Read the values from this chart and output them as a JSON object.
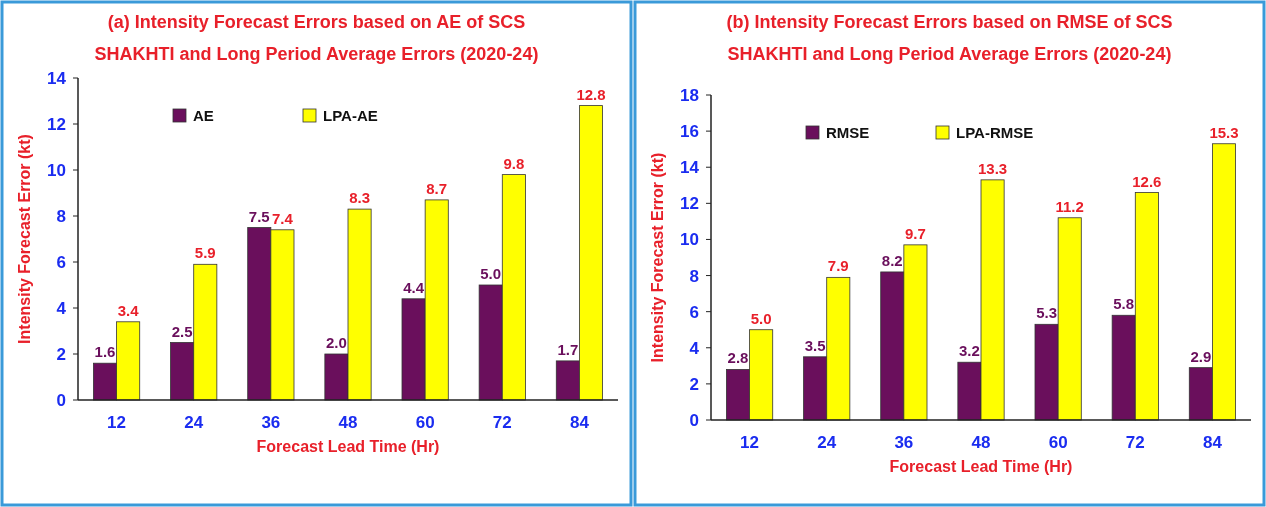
{
  "chart_data": [
    {
      "type": "bar",
      "title": "(a) Intensity Forecast Errors based on AE of SCS SHAKHTI and Long Period Average Errors (2020-24)",
      "xlabel": "Forecast Lead Time (Hr)",
      "ylabel": "Intensity Forecast Error  (kt)",
      "categories": [
        "12",
        "24",
        "36",
        "48",
        "60",
        "72",
        "84"
      ],
      "series": [
        {
          "name": "AE",
          "color": "#6a0f5c",
          "values": [
            1.6,
            2.5,
            7.5,
            2.0,
            4.4,
            5.0,
            1.7
          ],
          "value_labels": [
            "1.6",
            "2.5",
            "7.5",
            "2.0",
            "4.4",
            "5.0",
            "1.7"
          ]
        },
        {
          "name": "LPA-AE",
          "color": "#ffff00",
          "values": [
            3.4,
            5.9,
            7.4,
            8.3,
            8.7,
            9.8,
            12.8
          ],
          "value_labels": [
            "3.4",
            "5.9",
            "7.4",
            "8.3",
            "8.7",
            "9.8",
            "12.8"
          ]
        }
      ],
      "ylim": [
        0,
        14
      ],
      "yticks": [
        0,
        2,
        4,
        6,
        8,
        10,
        12,
        14
      ],
      "legend": "top",
      "grid": false
    },
    {
      "type": "bar",
      "title": "(b) Intensity Forecast Errors based on RMSE of SCS SHAKHTI and Long Period Average Errors (2020-24)",
      "xlabel": "Forecast Lead Time (Hr)",
      "ylabel": "Intensity Forecast Error  (kt)",
      "categories": [
        "12",
        "24",
        "36",
        "48",
        "60",
        "72",
        "84"
      ],
      "series": [
        {
          "name": "RMSE",
          "color": "#6a0f5c",
          "values": [
            2.8,
            3.5,
            8.2,
            3.2,
            5.3,
            5.8,
            2.9
          ],
          "value_labels": [
            "2.8",
            "3.5",
            "8.2",
            "3.2",
            "5.3",
            "5.8",
            "2.9"
          ]
        },
        {
          "name": "LPA-RMSE",
          "color": "#ffff00",
          "values": [
            5.0,
            7.9,
            9.7,
            13.3,
            11.2,
            12.6,
            15.3
          ],
          "value_labels": [
            "5.0",
            "7.9",
            "9.7",
            "13.3",
            "11.2",
            "12.6",
            "15.3"
          ]
        }
      ],
      "ylim": [
        0,
        18
      ],
      "yticks": [
        0,
        2,
        4,
        6,
        8,
        10,
        12,
        14,
        16,
        18
      ],
      "legend": "top",
      "grid": false
    }
  ]
}
